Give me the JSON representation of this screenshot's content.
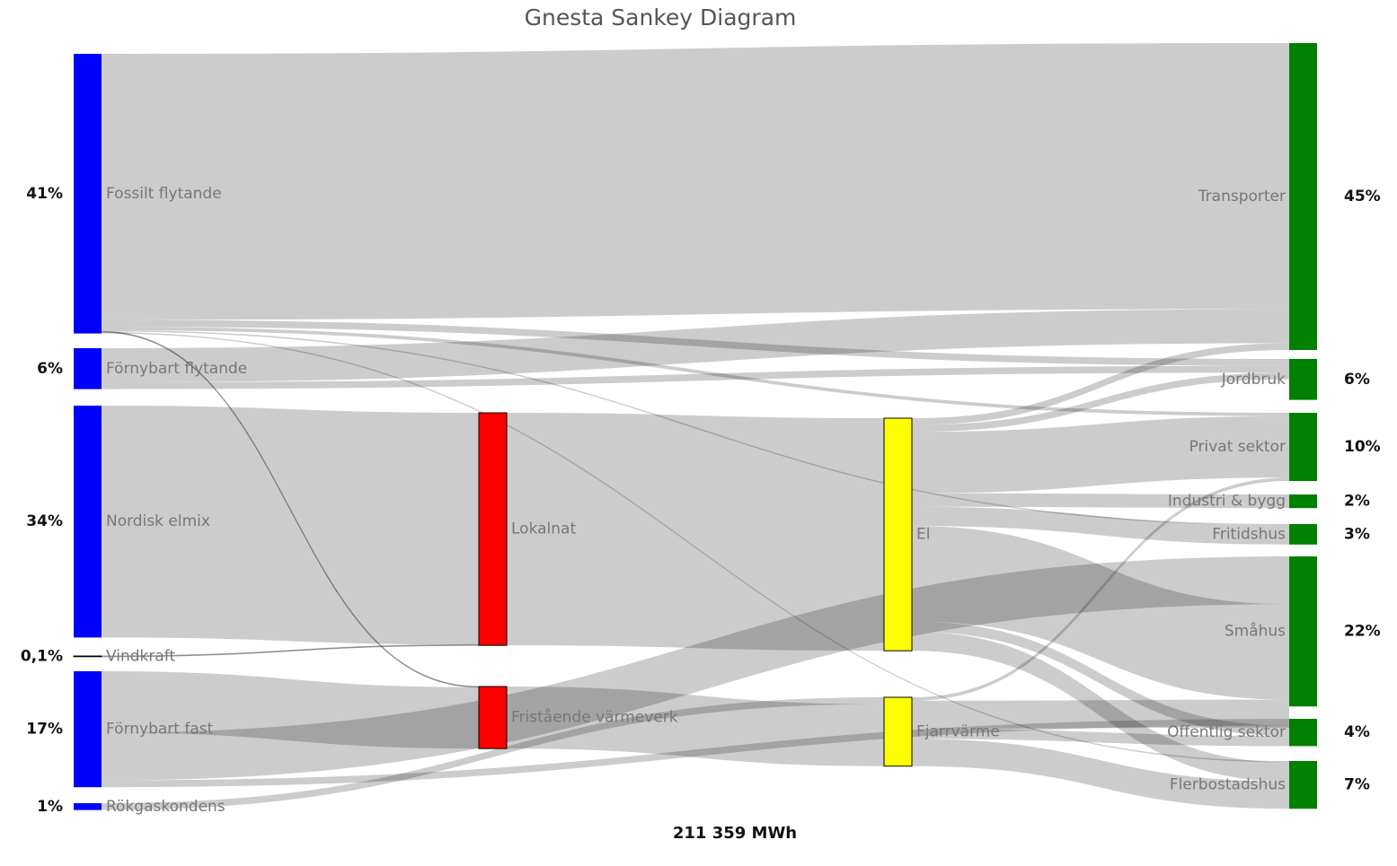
{
  "chart_data": {
    "type": "sankey",
    "title": "Gnesta Sankey Diagram",
    "total_label": "211 359 MWh",
    "columns": [
      [
        {
          "name": "Fossilt flytande",
          "value": 41,
          "value_label": "41%",
          "color": "#0000ff"
        },
        {
          "name": "Förnybart flytande",
          "value": 6,
          "value_label": "6%",
          "color": "#0000ff"
        },
        {
          "name": "Nordisk elmix",
          "value": 34,
          "value_label": "34%",
          "color": "#0000ff"
        },
        {
          "name": "Vindkraft",
          "value": 0.1,
          "value_label": "0,1%",
          "color": "#0000ff"
        },
        {
          "name": "Förnybart fast",
          "value": 17,
          "value_label": "17%",
          "color": "#0000ff"
        },
        {
          "name": "Rökgaskondens",
          "value": 1,
          "value_label": "1%",
          "color": "#0000ff"
        }
      ],
      [
        {
          "name": "Lokalnat",
          "value": 34.1,
          "color": "#ff0000"
        },
        {
          "name": "Fristående värmeverk",
          "value": 9.1,
          "color": "#ff0000"
        }
      ],
      [
        {
          "name": "El",
          "value": 34.1,
          "color": "#ffff00"
        },
        {
          "name": "Fjarrvärme",
          "value": 10.1,
          "color": "#ffff00"
        }
      ],
      [
        {
          "name": "Transporter",
          "value": 45,
          "value_label": "45%",
          "color": "#008000"
        },
        {
          "name": "Jordbruk",
          "value": 6,
          "value_label": "6%",
          "color": "#008000"
        },
        {
          "name": "Privat sektor",
          "value": 10,
          "value_label": "10%",
          "color": "#008000"
        },
        {
          "name": "Industri & bygg",
          "value": 2,
          "value_label": "2%",
          "color": "#008000"
        },
        {
          "name": "Fritidshus",
          "value": 3,
          "value_label": "3%",
          "color": "#008000"
        },
        {
          "name": "Småhus",
          "value": 22,
          "value_label": "22%",
          "color": "#008000"
        },
        {
          "name": "Offentlig sektor",
          "value": 4,
          "value_label": "4%",
          "color": "#008000"
        },
        {
          "name": "Flerbostadshus",
          "value": 7,
          "value_label": "7%",
          "color": "#008000"
        }
      ]
    ],
    "links": [
      {
        "source": "Fossilt flytande",
        "target": "Transporter",
        "value": 39
      },
      {
        "source": "Fossilt flytande",
        "target": "Jordbruk",
        "value": 1
      },
      {
        "source": "Fossilt flytande",
        "target": "Privat sektor",
        "value": 0.5
      },
      {
        "source": "Fossilt flytande",
        "target": "Fritidshus",
        "value": 0.2
      },
      {
        "source": "Fossilt flytande",
        "target": "Fristående värmeverk",
        "value": 0.1
      },
      {
        "source": "Fossilt flytande",
        "target": "Flerbostadshus",
        "value": 0.2
      },
      {
        "source": "Förnybart flytande",
        "target": "Transporter",
        "value": 5
      },
      {
        "source": "Förnybart flytande",
        "target": "Jordbruk",
        "value": 1
      },
      {
        "source": "Nordisk elmix",
        "target": "Lokalnat",
        "value": 34
      },
      {
        "source": "Vindkraft",
        "target": "Lokalnat",
        "value": 0.1
      },
      {
        "source": "Förnybart fast",
        "target": "Fristående värmeverk",
        "value": 9
      },
      {
        "source": "Förnybart fast",
        "target": "Småhus",
        "value": 7
      },
      {
        "source": "Förnybart fast",
        "target": "Offentlig sektor",
        "value": 1
      },
      {
        "source": "Rökgaskondens",
        "target": "Fjarrvärme",
        "value": 1
      },
      {
        "source": "Lokalnat",
        "target": "El",
        "value": 34.1
      },
      {
        "source": "Fristående värmeverk",
        "target": "Fjarrvärme",
        "value": 9.1
      },
      {
        "source": "El",
        "target": "Transporter",
        "value": 1
      },
      {
        "source": "El",
        "target": "Jordbruk",
        "value": 1
      },
      {
        "source": "El",
        "target": "Privat sektor",
        "value": 9
      },
      {
        "source": "El",
        "target": "Industri & bygg",
        "value": 2
      },
      {
        "source": "El",
        "target": "Fritidshus",
        "value": 2.8
      },
      {
        "source": "El",
        "target": "Småhus",
        "value": 14
      },
      {
        "source": "El",
        "target": "Offentlig sektor",
        "value": 1.5
      },
      {
        "source": "El",
        "target": "Flerbostadshus",
        "value": 2.8
      },
      {
        "source": "Fjarrvärme",
        "target": "Privat sektor",
        "value": 0.5
      },
      {
        "source": "Fjarrvärme",
        "target": "Småhus",
        "value": 4.1
      },
      {
        "source": "Fjarrvärme",
        "target": "Offentlig sektor",
        "value": 1.5
      },
      {
        "source": "Fjarrvärme",
        "target": "Flerbostadshus",
        "value": 4
      }
    ]
  }
}
